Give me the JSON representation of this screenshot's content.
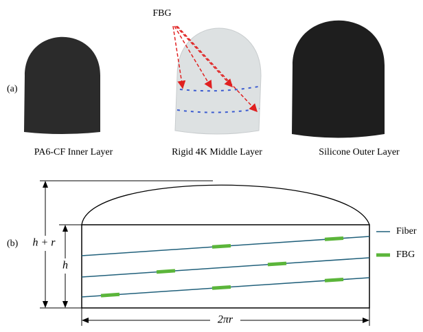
{
  "panel_a": {
    "label": "(a)",
    "annotation": "FBG",
    "captions": [
      "PA6-CF Inner Layer",
      "Rigid 4K Middle Layer",
      "Silicone Outer Layer"
    ]
  },
  "panel_b": {
    "label": "(b)",
    "total_height": "h + r",
    "height": "h",
    "width": "2πr",
    "legend": [
      "Fiber",
      "FBG"
    ]
  }
}
